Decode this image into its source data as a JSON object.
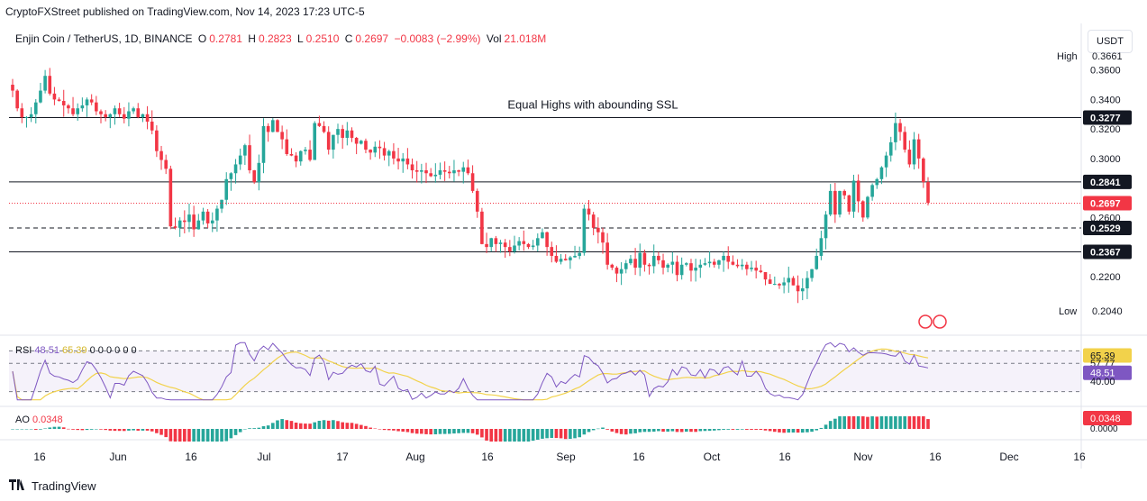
{
  "header": {
    "publisher": "CryptoFXStreet published on TradingView.com, Nov 14, 2023 17:23 UTC-5"
  },
  "legend": {
    "symbol": "Enjin Coin / TetherUS, 1D, BINANCE",
    "o_label": "O",
    "o_value": "0.2781",
    "h_label": "H",
    "h_value": "0.2823",
    "l_label": "L",
    "l_value": "0.2510",
    "c_label": "C",
    "c_value": "0.2697",
    "change": "−0.0083 (−2.99%)",
    "vol_label": "Vol",
    "vol_value": "21.018M"
  },
  "toolbar": {
    "currency": "USDT",
    "settings_icon": "gear-icon"
  },
  "colors": {
    "up": "#26a69a",
    "down": "#f23645",
    "rsi": "#7e57c2",
    "rsi_ma": "#f2d24b",
    "level": "#131722"
  },
  "chart_data": [
    {
      "type": "candlestick",
      "title": "Enjin Coin / TetherUS, 1D, BINANCE",
      "annotation": "Equal Highs with abounding SSL",
      "ylim": [
        0.19,
        0.372
      ],
      "y_ticks": [
        "0.3600",
        "0.3400",
        "0.3200",
        "0.3000",
        "0.2600",
        "0.2200"
      ],
      "y_tick_values": [
        0.36,
        0.34,
        0.32,
        0.3,
        0.26,
        0.22
      ],
      "levels": [
        {
          "value": 0.3277,
          "label": "0.3277",
          "style": "solid"
        },
        {
          "value": 0.2841,
          "label": "0.2841",
          "style": "solid"
        },
        {
          "value": 0.2529,
          "label": "0.2529",
          "style": "dashed"
        },
        {
          "value": 0.2367,
          "label": "0.2367",
          "style": "solid"
        }
      ],
      "last_price": {
        "value": 0.2697,
        "label": "0.2697"
      },
      "high_marker": {
        "label": "High",
        "value": "0.3661"
      },
      "low_marker": {
        "label": "Low",
        "value": "0.2040"
      },
      "x_ticks": [
        "16",
        "Jun",
        "16",
        "Jul",
        "17",
        "Aug",
        "16",
        "Sep",
        "16",
        "Oct",
        "16",
        "Nov",
        "16",
        "Dec",
        "16"
      ],
      "closes": [
        0.346,
        0.334,
        0.328,
        0.328,
        0.33,
        0.338,
        0.346,
        0.356,
        0.344,
        0.34,
        0.339,
        0.336,
        0.334,
        0.33,
        0.334,
        0.336,
        0.34,
        0.338,
        0.332,
        0.33,
        0.328,
        0.33,
        0.334,
        0.33,
        0.327,
        0.332,
        0.334,
        0.328,
        0.33,
        0.325,
        0.319,
        0.305,
        0.299,
        0.293,
        0.254,
        0.253,
        0.258,
        0.257,
        0.262,
        0.252,
        0.258,
        0.264,
        0.256,
        0.258,
        0.266,
        0.272,
        0.286,
        0.29,
        0.296,
        0.302,
        0.309,
        0.292,
        0.284,
        0.297,
        0.322,
        0.318,
        0.326,
        0.318,
        0.313,
        0.303,
        0.302,
        0.298,
        0.305,
        0.306,
        0.299,
        0.324,
        0.322,
        0.318,
        0.306,
        0.316,
        0.32,
        0.314,
        0.319,
        0.314,
        0.31,
        0.312,
        0.306,
        0.304,
        0.308,
        0.307,
        0.302,
        0.305,
        0.3,
        0.298,
        0.3,
        0.296,
        0.292,
        0.291,
        0.292,
        0.29,
        0.288,
        0.289,
        0.292,
        0.291,
        0.29,
        0.292,
        0.291,
        0.294,
        0.29,
        0.278,
        0.264,
        0.242,
        0.24,
        0.246,
        0.242,
        0.243,
        0.24,
        0.237,
        0.241,
        0.244,
        0.242,
        0.24,
        0.241,
        0.246,
        0.25,
        0.24,
        0.234,
        0.23,
        0.232,
        0.231,
        0.233,
        0.234,
        0.236,
        0.266,
        0.262,
        0.253,
        0.25,
        0.243,
        0.228,
        0.226,
        0.222,
        0.225,
        0.229,
        0.232,
        0.226,
        0.236,
        0.228,
        0.227,
        0.234,
        0.231,
        0.226,
        0.228,
        0.23,
        0.221,
        0.228,
        0.229,
        0.224,
        0.226,
        0.228,
        0.229,
        0.23,
        0.228,
        0.231,
        0.234,
        0.23,
        0.228,
        0.227,
        0.228,
        0.225,
        0.226,
        0.224,
        0.223,
        0.218,
        0.215,
        0.215,
        0.214,
        0.216,
        0.219,
        0.214,
        0.21,
        0.212,
        0.219,
        0.225,
        0.234,
        0.246,
        0.262,
        0.278,
        0.262,
        0.278,
        0.275,
        0.264,
        0.285,
        0.271,
        0.26,
        0.274,
        0.282,
        0.286,
        0.294,
        0.302,
        0.311,
        0.324,
        0.318,
        0.306,
        0.296,
        0.313,
        0.3,
        0.284,
        0.27
      ],
      "rsi": {
        "label": "RSI",
        "value": 48.51,
        "ma_value": 65.39,
        "legend_values": [
          "48.51",
          "65.39",
          "0",
          "0",
          "0",
          "0",
          "0",
          "0"
        ],
        "levels": [
          70,
          57.77,
          30
        ],
        "axis_ticks": [
          "57.77",
          "40.00"
        ],
        "range": [
          20,
          80
        ]
      },
      "ao": {
        "label": "AO",
        "value": "0.0348",
        "axis_tick": "0.0000"
      }
    }
  ],
  "footer": {
    "brand": "TradingView"
  }
}
